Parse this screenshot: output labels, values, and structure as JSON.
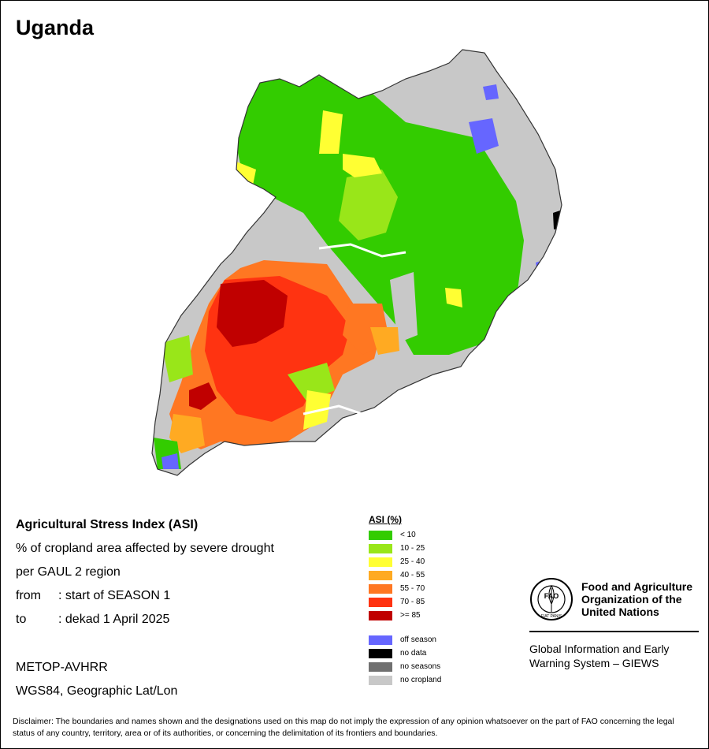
{
  "title": "Uganda",
  "info": {
    "index_name": "Agricultural Stress Index (ASI)",
    "description": "% of cropland area affected by severe drought",
    "unit_region": "per GAUL 2 region",
    "from_label": "from",
    "from_value": ": start of SEASON 1",
    "to_label": "to",
    "to_value": ": dekad 1 April 2025"
  },
  "sensor": {
    "instrument": "METOP-AVHRR",
    "projection": "WGS84, Geographic Lat/Lon"
  },
  "legend": {
    "title": "ASI (%)",
    "classes": [
      {
        "label": "< 10",
        "color": "#33cc00"
      },
      {
        "label": "10 - 25",
        "color": "#99e619"
      },
      {
        "label": "25 - 40",
        "color": "#ffff33"
      },
      {
        "label": "40 - 55",
        "color": "#ffaa22"
      },
      {
        "label": "55 - 70",
        "color": "#ff7722"
      },
      {
        "label": "70 - 85",
        "color": "#ff3311"
      },
      {
        "label": ">= 85",
        "color": "#c00000"
      }
    ],
    "other": [
      {
        "label": "off season",
        "color": "#6666ff"
      },
      {
        "label": "no data",
        "color": "#000000"
      },
      {
        "label": "no seasons",
        "color": "#707070"
      },
      {
        "label": "no cropland",
        "color": "#c8c8c8"
      }
    ]
  },
  "fao": {
    "emblem_text": "FAO",
    "motto": "FIAT PANIS",
    "name_line1": "Food and Agriculture",
    "name_line2": "Organization of the",
    "name_line3": "United Nations",
    "giews_line1": "Global Information and Early",
    "giews_line2": "Warning System – GIEWS"
  },
  "disclaimer": "Disclaimer: The boundaries and names shown and the designations used on this map do not imply the expression of any opinion whatsoever on the part of FAO concerning the legal status of any country, territory, area or of its authorities, or concerning the delimitation of its frontiers and boundaries."
}
